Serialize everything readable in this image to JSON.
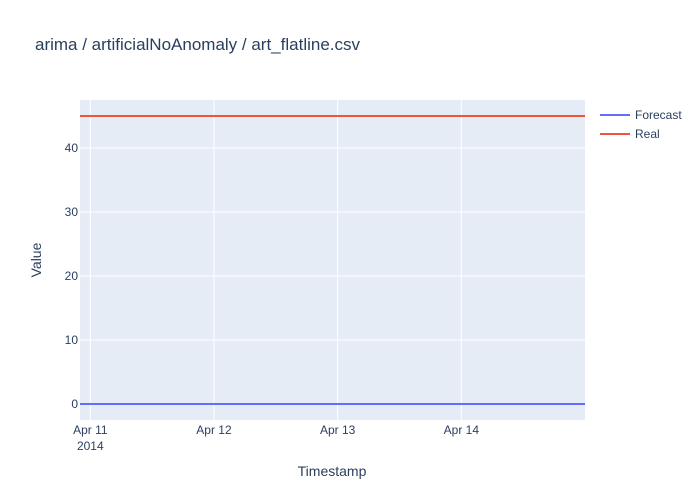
{
  "chart_data": {
    "type": "line",
    "title": "arima / artificialNoAnomaly / art_flatline.csv",
    "xlabel": "Timestamp",
    "ylabel": "Value",
    "x_range": [
      "2014-04-10T22:00",
      "2014-04-15T00:00"
    ],
    "ylim": [
      -2.5,
      47.5
    ],
    "x_ticks": [
      {
        "date": "2014-04-11T00:00",
        "label": "Apr 11",
        "sublabel": "2014"
      },
      {
        "date": "2014-04-12T00:00",
        "label": "Apr 12",
        "sublabel": ""
      },
      {
        "date": "2014-04-13T00:00",
        "label": "Apr 13",
        "sublabel": ""
      },
      {
        "date": "2014-04-14T00:00",
        "label": "Apr 14",
        "sublabel": ""
      }
    ],
    "y_ticks": [
      0,
      10,
      20,
      30,
      40
    ],
    "grid": true,
    "legend_position": "top-right",
    "series": [
      {
        "name": "Forecast",
        "color": "#636efa",
        "x": [
          "2014-04-10T22:00",
          "2014-04-15T00:00"
        ],
        "y": [
          0,
          0
        ]
      },
      {
        "name": "Real",
        "color": "#ef553b",
        "x": [
          "2014-04-10T22:00",
          "2014-04-15T00:00"
        ],
        "y": [
          45,
          45
        ]
      }
    ]
  }
}
